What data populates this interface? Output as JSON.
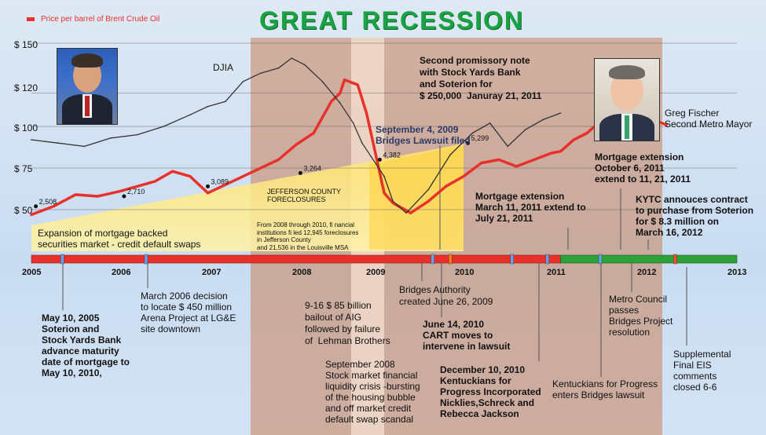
{
  "header": {
    "title": "GREAT RECESSION",
    "legend": "Price per barrel of Brent Crude Oil",
    "legend_color": "#e8312b"
  },
  "chart_data": {
    "type": "line",
    "title": "GREAT RECESSION",
    "xlim": [
      2005,
      2013
    ],
    "ylim": [
      43,
      152
    ],
    "y_ticks": [
      {
        "value": 150,
        "label": "$ 150"
      },
      {
        "value": 120,
        "label": "$ 120"
      },
      {
        "value": 100,
        "label": "$ 100"
      },
      {
        "value": 75,
        "label": "$ 75"
      },
      {
        "value": 50,
        "label": "$ 50"
      }
    ],
    "x_ticks": [
      "2005",
      "2006",
      "2007",
      "2008",
      "2009",
      "2010",
      "2011",
      "2012",
      "2013"
    ],
    "grid": "horizontal",
    "series": [
      {
        "name": "Price per barrel of Brent Crude Oil",
        "color": "#e8312b",
        "x": [
          2005.0,
          2005.25,
          2005.5,
          2005.75,
          2006.0,
          2006.2,
          2006.4,
          2006.6,
          2006.8,
          2007.0,
          2007.2,
          2007.4,
          2007.6,
          2007.8,
          2008.0,
          2008.2,
          2008.4,
          2008.5,
          2008.55,
          2008.7,
          2008.8,
          2008.9,
          2009.0,
          2009.1,
          2009.3,
          2009.5,
          2009.7,
          2009.9,
          2010.1,
          2010.3,
          2010.5,
          2010.7,
          2010.9,
          2011.0,
          2011.15,
          2011.3,
          2011.45,
          2011.6,
          2011.75,
          2011.9,
          2012.05,
          2012.2
        ],
        "y": [
          47,
          52,
          59,
          58,
          61,
          64,
          67,
          73,
          70,
          60,
          65,
          70,
          75,
          80,
          89,
          96,
          115,
          120,
          128,
          125,
          108,
          84,
          60,
          54,
          48,
          55,
          64,
          70,
          78,
          80,
          76,
          80,
          84,
          85,
          92,
          96,
          103,
          112,
          109,
          108,
          104,
          101
        ]
      },
      {
        "name": "DJIA",
        "color": "#333333",
        "x": [
          2005.0,
          2005.3,
          2005.6,
          2005.9,
          2006.2,
          2006.5,
          2006.8,
          2007.0,
          2007.2,
          2007.4,
          2007.6,
          2007.8,
          2007.95,
          2008.1,
          2008.3,
          2008.5,
          2008.65,
          2008.75,
          2008.85,
          2009.0,
          2009.1,
          2009.25,
          2009.5,
          2009.75,
          2010.0,
          2010.2,
          2010.4,
          2010.6,
          2010.8,
          2011.0
        ],
        "y": [
          92,
          90,
          88,
          93,
          95,
          100,
          107,
          112,
          115,
          127,
          132,
          135,
          141,
          137,
          127,
          114,
          102,
          90,
          82,
          70,
          55,
          48,
          62,
          83,
          96,
          102,
          88,
          98,
          104,
          108
        ]
      }
    ],
    "point_labels": [
      {
        "x": 2005.05,
        "y": 52,
        "label": "2,508"
      },
      {
        "x": 2006.05,
        "y": 58,
        "label": "2,710"
      },
      {
        "x": 2007.0,
        "y": 64,
        "label": "3,089"
      },
      {
        "x": 2008.05,
        "y": 72,
        "label": "3,264"
      },
      {
        "x": 2008.95,
        "y": 80,
        "label": "4,382"
      },
      {
        "x": 2009.95,
        "y": 90,
        "label": "5,299"
      }
    ],
    "annotations": [
      "DJIA"
    ]
  },
  "timeline": {
    "ticks": [
      {
        "x": 2005.35,
        "color": "#6aa0e8"
      },
      {
        "x": 2006.3,
        "color": "#6aa0e8"
      },
      {
        "x": 2009.55,
        "color": "#6aa0e8"
      },
      {
        "x": 2009.75,
        "color": "#ff7d1a"
      },
      {
        "x": 2010.45,
        "color": "#6aa0e8"
      },
      {
        "x": 2010.85,
        "color": "#6aa0e8"
      },
      {
        "x": 2011.45,
        "color": "#6aa0e8"
      },
      {
        "x": 2012.3,
        "color": "#ff4d2e"
      }
    ]
  },
  "notes": {
    "expansion": "Expansion of mortgage backed\nsecurities market - credit default swaps",
    "jefferson": "JEFFERSON COUNTY\nFORECLOSURES",
    "foreclosures": "From 2008 through 2010, fi nancial\ninstitutions fi led 12,945 foreclosures\nin Jefferson County\nand 21,536 in the Louisville MSA",
    "promissory": "Second promissory note\nwith Stock Yards Bank\nand Soterion for\n$ 250,000  Januray 21, 2011",
    "lawsuit": "September 4, 2009\nBridges Lawsuit filed",
    "fischer": "Greg Fischer\nSecond Metro Mayor",
    "ext_oct": "Mortgage extension\nOctober 6, 2011\nextend to 11, 21, 2011",
    "ext_mar": "Mortgage extension\nMarch 11, 2011 extend to\nJuly 21, 2011",
    "kytc": "KYTC annouces contract\nto purchase from Soterion\nfor $ 8.3 million on\nMarch 16, 2012",
    "may2005": "May 10, 2005\nSoterion and\nStock Yards Bank\nadvance maturity\ndate of mortgage to\nMay 10, 2010,",
    "march2006": "March 2006 decision\nto locate $ 450 million\nArena Project at LG&E\nsite downtown",
    "aig": "9-16 $ 85 billion\nbailout of AIG\nfollowed by failure\nof  Lehman Brothers",
    "bridges_auth": "Bridges Authority\ncreated June 26, 2009",
    "june2010": "June 14, 2010\nCART moves to\nintervene in lawsuit",
    "sep2008": "September 2008\nStock market financial\nliquidity crisis -bursting\nof the housing bubble\nand off market credit\ndefault swap scandal",
    "dec2010": "December 10, 2010\nKentuckians for\nProgress Incorporated\nNicklies,Schreck and\nRebecca Jackson",
    "kfp": "Kentuckians for Progress\nenters Bridges lawsuit",
    "metro": "Metro Council\npasses\nBridges Project\nresolution",
    "supp": "Supplemental\nFinal EIS\ncomments\nclosed 6-6"
  }
}
